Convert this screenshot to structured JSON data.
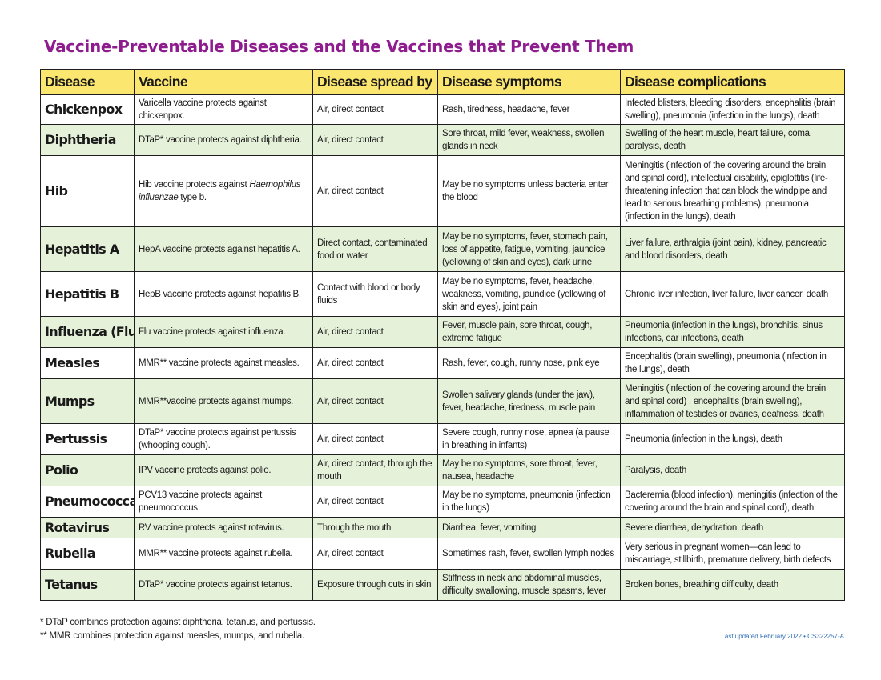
{
  "title": "Vaccine-Preventable Diseases and the Vaccines that Prevent Them",
  "columns": [
    "Disease",
    "Vaccine",
    "Disease spread by",
    "Disease symptoms",
    "Disease complications"
  ],
  "rows": [
    {
      "disease": "Chickenpox",
      "vaccine": "Varicella vaccine protects against chickenpox.",
      "spread": "Air, direct contact",
      "symptoms": "Rash, tiredness, headache, fever",
      "complications": "Infected blisters, bleeding disorders, encephalitis (brain swelling), pneumonia (infection in the lungs), death"
    },
    {
      "disease": "Diphtheria",
      "vaccine": "DTaP* vaccine protects against diphtheria.",
      "spread": "Air, direct contact",
      "symptoms": "Sore throat, mild fever, weakness, swollen glands in neck",
      "complications": "Swelling of the heart muscle, heart failure, coma, paralysis, death"
    },
    {
      "disease": "Hib",
      "vaccine_pre": "Hib vaccine protects against ",
      "vaccine_em": "Haemophilus influenzae",
      "vaccine_post": " type b.",
      "spread": "Air, direct contact",
      "symptoms": "May be no symptoms unless bacteria enter the blood",
      "complications": "Meningitis (infection  of the covering around the brain and spinal cord), intellectual disability, epiglottitis (life-threatening infection that can block the windpipe and lead to serious breathing problems), pneumonia (infection in the lungs), death"
    },
    {
      "disease": "Hepatitis A",
      "vaccine": "HepA vaccine protects against hepatitis A.",
      "spread": "Direct contact, contaminated food or water",
      "symptoms": "May be no symptoms, fever, stomach pain, loss of appetite, fatigue, vomiting, jaundice (yellowing of skin and eyes), dark urine",
      "complications": "Liver failure, arthralgia (joint pain), kidney, pancreatic and blood disorders, death"
    },
    {
      "disease": "Hepatitis B",
      "vaccine": "HepB vaccine protects against hepatitis B.",
      "spread": "Contact with blood or body fluids",
      "symptoms": "May be no symptoms, fever, headache, weakness, vomiting, jaundice (yellowing of skin and eyes), joint pain",
      "complications": "Chronic liver infection, liver failure, liver cancer, death"
    },
    {
      "disease": "Influenza (Flu)",
      "vaccine": "Flu vaccine protects against influenza.",
      "spread": "Air, direct contact",
      "symptoms": "Fever, muscle pain, sore throat, cough, extreme fatigue",
      "complications": "Pneumonia (infection in the lungs), bronchitis, sinus infections, ear infections, death"
    },
    {
      "disease": "Measles",
      "vaccine": "MMR** vaccine protects against measles.",
      "spread": "Air, direct contact",
      "symptoms": "Rash, fever, cough, runny nose, pink eye",
      "complications": "Encephalitis (brain swelling), pneumonia (infection in the lungs), death"
    },
    {
      "disease": "Mumps",
      "vaccine": "MMR**vaccine protects against mumps.",
      "spread": "Air, direct contact",
      "symptoms": "Swollen salivary glands (under the jaw), fever, headache, tiredness, muscle pain",
      "complications": "Meningitis (infection of the covering around the brain and spinal cord) , encephalitis (brain swelling), inflammation of testicles or ovaries, deafness, death"
    },
    {
      "disease": "Pertussis",
      "vaccine": "DTaP* vaccine protects against pertussis (whooping cough).",
      "spread": "Air, direct contact",
      "symptoms": "Severe cough, runny nose, apnea (a pause in breathing in infants)",
      "complications": "Pneumonia (infection in the lungs), death"
    },
    {
      "disease": "Polio",
      "vaccine": "IPV vaccine protects against polio.",
      "spread": "Air, direct contact, through the mouth",
      "symptoms": "May be no symptoms, sore throat, fever, nausea, headache",
      "complications": "Paralysis, death"
    },
    {
      "disease": "Pneumococcal",
      "vaccine": "PCV13 vaccine protects against pneumococcus.",
      "spread": "Air, direct contact",
      "symptoms": "May be no symptoms, pneumonia (infection in the lungs)",
      "complications": "Bacteremia (blood infection), meningitis (infection of the covering around the brain and spinal cord), death"
    },
    {
      "disease": "Rotavirus",
      "vaccine": "RV vaccine protects against rotavirus.",
      "spread": "Through the mouth",
      "symptoms": "Diarrhea, fever, vomiting",
      "complications": "Severe diarrhea, dehydration, death"
    },
    {
      "disease": "Rubella",
      "vaccine": "MMR** vaccine protects against rubella.",
      "spread": "Air, direct contact",
      "symptoms": "Sometimes rash, fever, swollen lymph nodes",
      "complications": "Very serious in pregnant women—can lead to miscarriage, stillbirth, premature delivery, birth defects"
    },
    {
      "disease": "Tetanus",
      "vaccine": "DTaP* vaccine protects against tetanus.",
      "spread": "Exposure through cuts in skin",
      "symptoms": "Stiffness in neck and abdominal muscles, difficulty swallowing,  muscle spasms, fever",
      "complications": "Broken bones, breathing difficulty, death"
    }
  ],
  "footnotes": [
    "* DTaP combines protection against diphtheria, tetanus, and pertussis.",
    "** MMR combines protection against measles, mumps, and rubella."
  ],
  "last_updated": "Last updated February 2022 • CS322257-A",
  "colors": {
    "title": "#8e1c8e",
    "header_bg": "#fbe670",
    "row_alt_bg": "#e6f1da",
    "updated_text": "#2e6db3"
  }
}
